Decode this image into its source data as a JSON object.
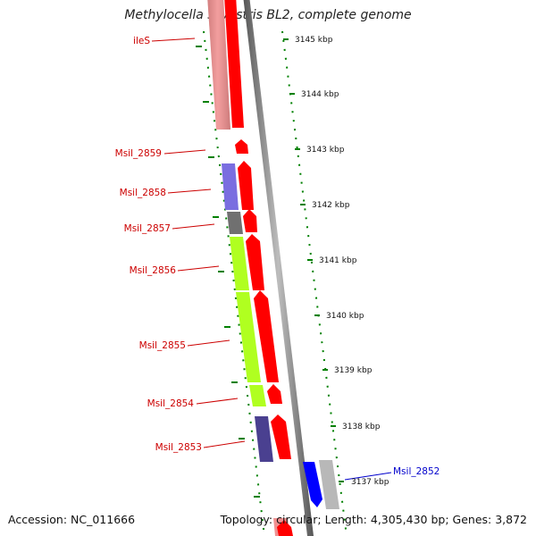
{
  "title": "Methylocella silvestris BL2, complete genome",
  "footer": {
    "accession": "Accession: NC_011666",
    "topology": "Topology: circular; Length: 4,305,430 bp; Genes: 3,872"
  },
  "scale": {
    "unit": "kbp",
    "ticks": [
      {
        "value": 3145,
        "label": "3145 kbp"
      },
      {
        "value": 3144,
        "label": "3144 kbp"
      },
      {
        "value": 3143,
        "label": "3143 kbp"
      },
      {
        "value": 3142,
        "label": "3142 kbp"
      },
      {
        "value": 3141,
        "label": "3141 kbp"
      },
      {
        "value": 3140,
        "label": "3140 kbp"
      },
      {
        "value": 3139,
        "label": "3139 kbp"
      },
      {
        "value": 3138,
        "label": "3138 kbp"
      },
      {
        "value": 3137,
        "label": "3137 kbp"
      }
    ]
  },
  "genes": [
    {
      "label": "ileS",
      "strand": "forward",
      "color": "#ff0000",
      "cog_color": "#f09090"
    },
    {
      "label": "Msil_2859",
      "strand": "forward",
      "color": "#ff0000"
    },
    {
      "label": "Msil_2858",
      "strand": "forward",
      "color": "#ff0000",
      "cog_color": "#7a6ee0"
    },
    {
      "label": "Msil_2857",
      "strand": "forward",
      "color": "#ff0000",
      "cog_color": "#707070"
    },
    {
      "label": "Msil_2856",
      "strand": "forward",
      "color": "#ff0000",
      "cog_color": "#b0ff20"
    },
    {
      "label": "Msil_2855",
      "strand": "forward",
      "color": "#ff0000",
      "cog_color": "#b0ff20"
    },
    {
      "label": "Msil_2854",
      "strand": "forward",
      "color": "#ff0000",
      "cog_color": "#b0ff20"
    },
    {
      "label": "Msil_2853",
      "strand": "forward",
      "color": "#ff0000",
      "cog_color": "#4a4090"
    },
    {
      "label": "Msil_2852",
      "strand": "reverse",
      "color": "#0000ff",
      "cog_color": "#b8b8b8"
    }
  ],
  "colors": {
    "forward_label": "#cc0000",
    "reverse_label": "#0000cc",
    "backbone": "#888888",
    "tick": "#008000"
  }
}
